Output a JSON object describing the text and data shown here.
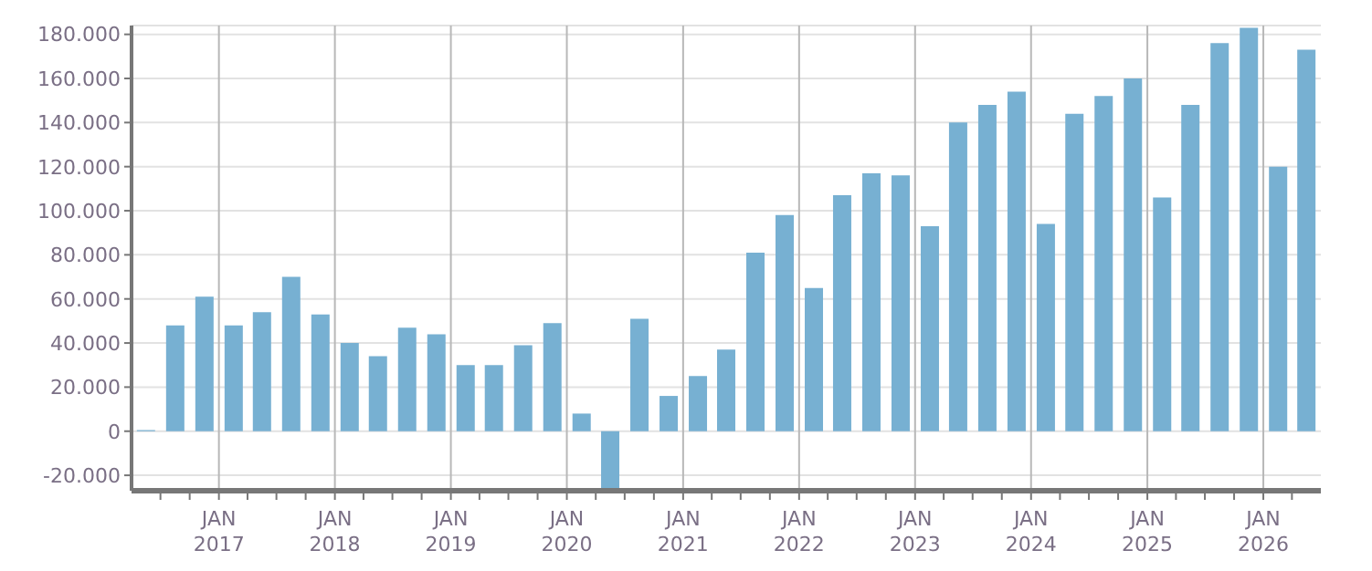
{
  "chart_data": {
    "type": "bar",
    "x": [
      "2016-05-15",
      "2016-08-15",
      "2016-11-15",
      "2017-02-15",
      "2017-05-15",
      "2017-08-15",
      "2017-11-15",
      "2018-02-15",
      "2018-05-15",
      "2018-08-15",
      "2018-11-15",
      "2019-02-15",
      "2019-05-15",
      "2019-08-15",
      "2019-11-15",
      "2020-02-15",
      "2020-05-15",
      "2020-08-15",
      "2020-11-15",
      "2021-02-15",
      "2021-05-15",
      "2021-08-15",
      "2021-11-15",
      "2022-02-15",
      "2022-05-15",
      "2022-08-15",
      "2022-11-15",
      "2023-02-15",
      "2023-05-15",
      "2023-08-15",
      "2023-11-15",
      "2024-02-15",
      "2024-05-15",
      "2024-08-15",
      "2024-11-15",
      "2025-02-15",
      "2025-05-15",
      "2025-08-15",
      "2025-11-15",
      "2026-02-15",
      "2026-05-15"
    ],
    "series": [
      {
        "color": "#77b0d2",
        "values": [
          500,
          48000,
          61000,
          48000,
          54000,
          70000,
          53000,
          40000,
          34000,
          47000,
          44000,
          30000,
          30000,
          39000,
          49000,
          8000,
          -26000,
          51000,
          16000,
          25000,
          37000,
          81000,
          98000,
          65000,
          107000,
          117000,
          116000,
          93000,
          140000,
          148000,
          154000,
          94000,
          144000,
          152000,
          160000,
          106000,
          148000,
          176000,
          183000,
          120000,
          173000
        ]
      }
    ],
    "xlim": [
      "2016-04",
      "2026-07"
    ],
    "xticks": [
      {
        "value": "2016-07",
        "label": null
      },
      {
        "value": "2016-10",
        "label": null
      },
      {
        "value": "2017-01",
        "label": "JAN 2017"
      },
      {
        "value": "2017-04",
        "label": null
      },
      {
        "value": "2017-07",
        "label": null
      },
      {
        "value": "2017-10",
        "label": null
      },
      {
        "value": "2018-01",
        "label": "JAN 2018"
      },
      {
        "value": "2018-04",
        "label": null
      },
      {
        "value": "2018-07",
        "label": null
      },
      {
        "value": "2018-10",
        "label": null
      },
      {
        "value": "2019-01",
        "label": "JAN 2019"
      },
      {
        "value": "2019-04",
        "label": null
      },
      {
        "value": "2019-07",
        "label": null
      },
      {
        "value": "2019-10",
        "label": null
      },
      {
        "value": "2020-01",
        "label": "JAN 2020"
      },
      {
        "value": "2020-04",
        "label": null
      },
      {
        "value": "2020-07",
        "label": null
      },
      {
        "value": "2020-10",
        "label": null
      },
      {
        "value": "2021-01",
        "label": "JAN 2021"
      },
      {
        "value": "2021-04",
        "label": null
      },
      {
        "value": "2021-07",
        "label": null
      },
      {
        "value": "2021-10",
        "label": null
      },
      {
        "value": "2022-01",
        "label": "JAN 2022"
      },
      {
        "value": "2022-04",
        "label": null
      },
      {
        "value": "2022-07",
        "label": null
      },
      {
        "value": "2022-10",
        "label": null
      },
      {
        "value": "2023-01",
        "label": "JAN 2023"
      },
      {
        "value": "2023-04",
        "label": null
      },
      {
        "value": "2023-07",
        "label": null
      },
      {
        "value": "2023-10",
        "label": null
      },
      {
        "value": "2024-01",
        "label": "JAN 2024"
      },
      {
        "value": "2024-04",
        "label": null
      },
      {
        "value": "2024-07",
        "label": null
      },
      {
        "value": "2024-10",
        "label": null
      },
      {
        "value": "2025-01",
        "label": "JAN 2025"
      },
      {
        "value": "2025-04",
        "label": null
      },
      {
        "value": "2025-07",
        "label": null
      },
      {
        "value": "2025-10",
        "label": null
      },
      {
        "value": "2026-01",
        "label": "JAN 2026"
      },
      {
        "value": "2026-04",
        "label": null
      }
    ],
    "ylim": [
      -27000,
      184000
    ],
    "yticks": [
      {
        "value": -20000,
        "label": "-20.000"
      },
      {
        "value": 0,
        "label": "0"
      },
      {
        "value": 20000,
        "label": "20.000"
      },
      {
        "value": 40000,
        "label": "40.000"
      },
      {
        "value": 60000,
        "label": "60.000"
      },
      {
        "value": 80000,
        "label": "80.000"
      },
      {
        "value": 100000,
        "label": "100.000"
      },
      {
        "value": 120000,
        "label": "120.000"
      },
      {
        "value": 140000,
        "label": "140.000"
      },
      {
        "value": 160000,
        "label": "160.000"
      },
      {
        "value": 180000,
        "label": "180.000"
      }
    ],
    "grid": true
  }
}
